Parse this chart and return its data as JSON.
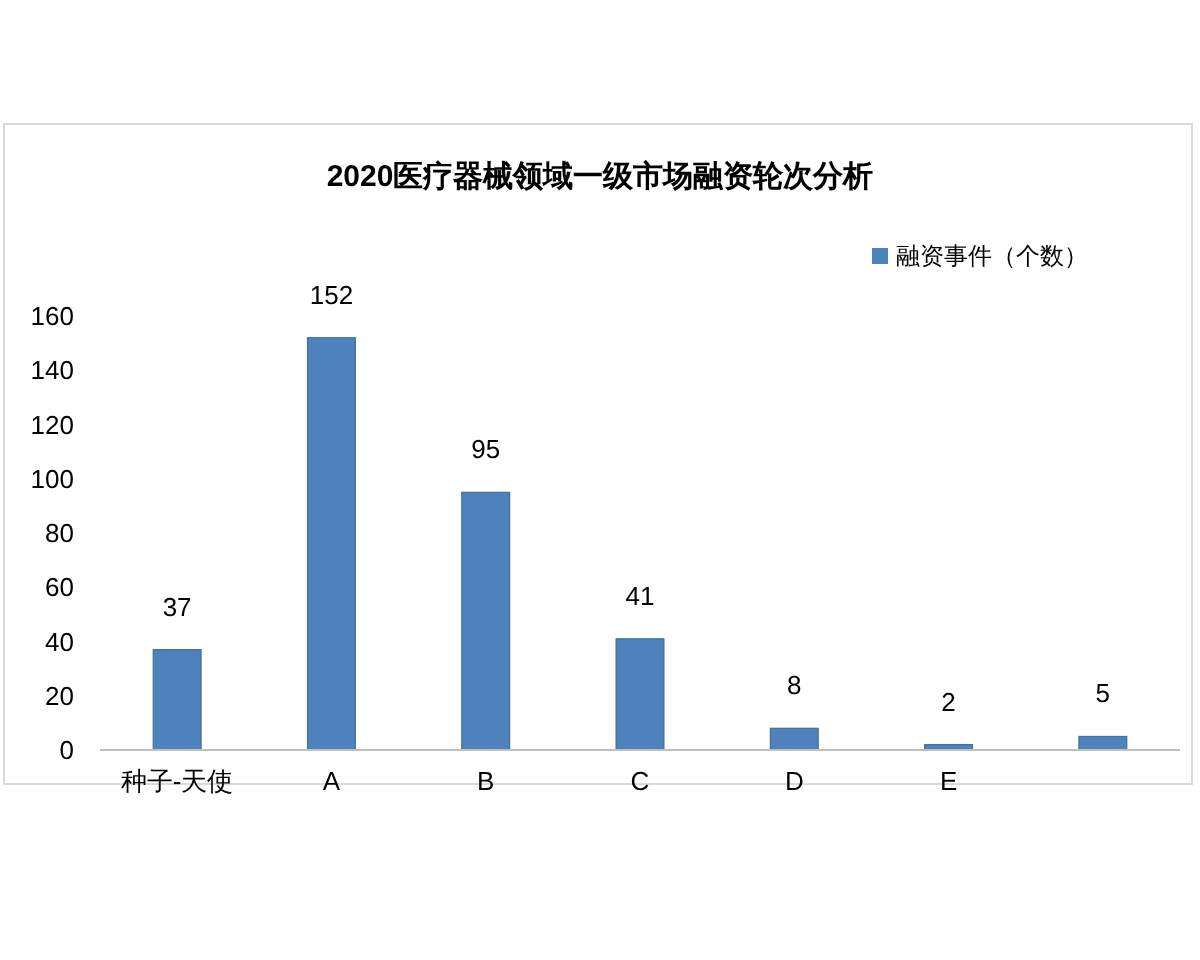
{
  "chart_data": {
    "type": "bar",
    "title": "2020医疗器械领域一级市场融资轮次分析",
    "categories": [
      "种子-天使",
      "A",
      "B",
      "C",
      "D",
      "E",
      null
    ],
    "series": [
      {
        "name": "融资事件（个数）",
        "color": "#4f81bd",
        "values": [
          37,
          152,
          95,
          41,
          8,
          2,
          5
        ]
      }
    ],
    "ylim": [
      0,
      160
    ],
    "yticks": [
      0,
      20,
      40,
      60,
      80,
      100,
      120,
      140,
      160
    ],
    "legend": "top right",
    "data_labels": true
  }
}
